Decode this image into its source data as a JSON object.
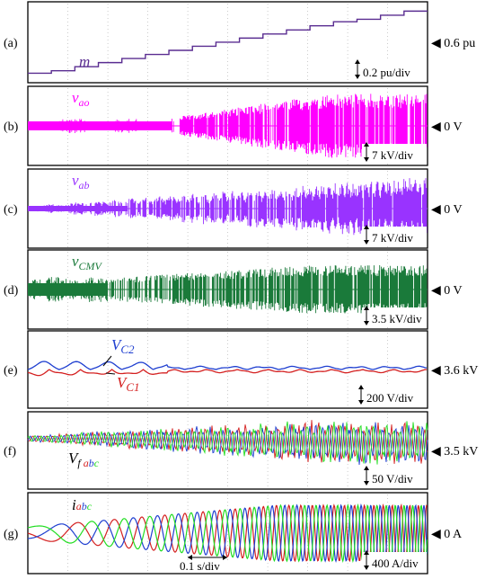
{
  "chart_data": [
    {
      "type": "line",
      "panel_label": "(a)",
      "reference_marker": "◀ 0.6 pu",
      "scale_label": "0.2 pu/div",
      "series": [
        {
          "name": "m",
          "name_main": "m",
          "name_sub": "",
          "color": "#5a2d91",
          "kind": "step",
          "steps": [
            0.5,
            0.8,
            1.3,
            1.8,
            2.3,
            2.8,
            3.3,
            3.8,
            4.3,
            4.8,
            5.3,
            5.8,
            6.3,
            6.8,
            7.1,
            7.6,
            8.1
          ]
        }
      ]
    },
    {
      "type": "line",
      "panel_label": "(b)",
      "reference_marker": "◀ 0 V",
      "scale_label": "7 kV/div",
      "series": [
        {
          "name": "vao",
          "name_main": "v",
          "name_sub": "ao",
          "color": "#ff00ff",
          "kind": "pwm"
        }
      ]
    },
    {
      "type": "line",
      "panel_label": "(c)",
      "reference_marker": "◀ 0 V",
      "scale_label": "7 kV/div",
      "series": [
        {
          "name": "vab",
          "name_main": "v",
          "name_sub": "ab",
          "color": "#9933ff",
          "kind": "pwm_line"
        }
      ]
    },
    {
      "type": "line",
      "panel_label": "(d)",
      "reference_marker": "◀ 0 V",
      "scale_label": "3.5 kV/div",
      "series": [
        {
          "name": "vCMV",
          "name_main": "v",
          "name_sub": "CMV",
          "color": "#1a7a3a",
          "kind": "cmv"
        }
      ]
    },
    {
      "type": "line",
      "panel_label": "(e)",
      "reference_marker": "◀ 3.6 kV",
      "scale_label": "200 V/div",
      "series": [
        {
          "name": "VC2",
          "name_main": "V",
          "name_sub": "C2",
          "color": "#1f3fd0",
          "kind": "cap"
        },
        {
          "name": "VC1",
          "name_main": "V",
          "name_sub": "C1",
          "color": "#d42020",
          "kind": "cap"
        }
      ]
    },
    {
      "type": "line",
      "panel_label": "(f)",
      "reference_marker": "◀ 3.5 kV",
      "scale_label": "50 V/div",
      "series_group_label": {
        "main": "V",
        "sub_prefix": "f",
        "parts": [
          "a",
          "b",
          "c"
        ]
      },
      "series": [
        {
          "name": "a",
          "color": "#d42020",
          "kind": "ripple"
        },
        {
          "name": "b",
          "color": "#1f3fd0",
          "kind": "ripple"
        },
        {
          "name": "c",
          "color": "#22dd22",
          "kind": "ripple"
        }
      ]
    },
    {
      "type": "line",
      "panel_label": "(g)",
      "reference_marker": "◀ 0 A",
      "scale_label": "400 A/div",
      "time_scale_label": "0.1 s/div",
      "series_group_label": {
        "main": "i",
        "sub_prefix": "",
        "parts": [
          "a",
          "b",
          "c"
        ]
      },
      "series": [
        {
          "name": "a",
          "color": "#d42020",
          "kind": "sine"
        },
        {
          "name": "b",
          "color": "#1f3fd0",
          "kind": "sine"
        },
        {
          "name": "c",
          "color": "#22dd22",
          "kind": "sine"
        }
      ]
    }
  ]
}
